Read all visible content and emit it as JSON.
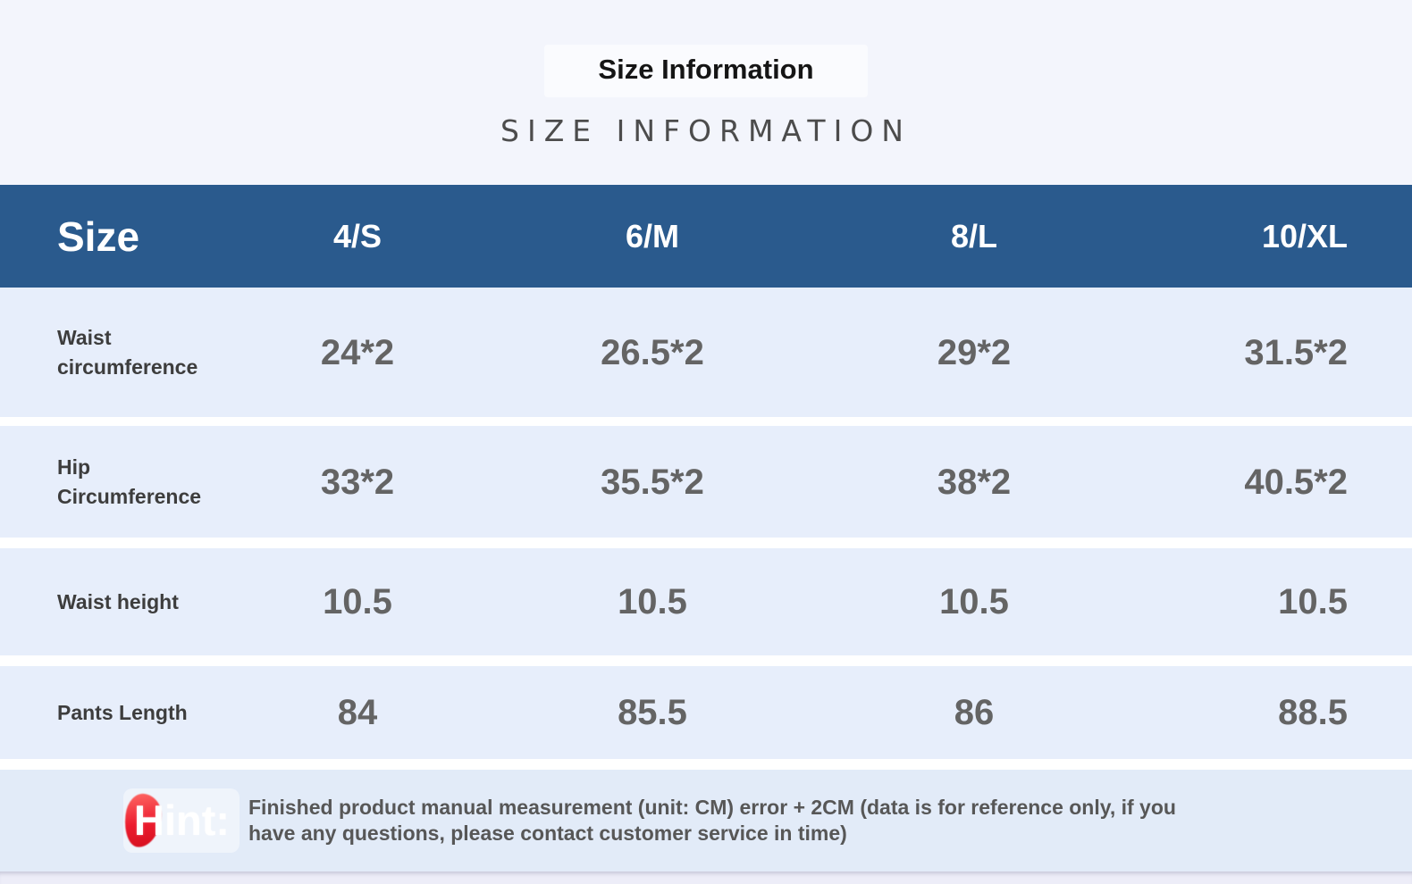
{
  "page": {
    "title": "Size Information",
    "subtitle": "SIZE INFORMATION"
  },
  "table": {
    "header": {
      "label": "Size",
      "columns": [
        "4/S",
        "6/M",
        "8/L",
        "10/XL"
      ]
    },
    "rows": [
      {
        "label": "Waist circumference",
        "values": [
          "24*2",
          "26.5*2",
          "29*2",
          "31.5*2"
        ]
      },
      {
        "label": "Hip Circumference",
        "values": [
          "33*2",
          "35.5*2",
          "38*2",
          "40.5*2"
        ]
      },
      {
        "label": "Waist height",
        "values": [
          "10.5",
          "10.5",
          "10.5",
          "10.5"
        ]
      },
      {
        "label": "Pants Length",
        "values": [
          "84",
          "85.5",
          "86",
          "88.5"
        ]
      }
    ],
    "unit_note": "CM"
  },
  "hint": {
    "label": "Hint:",
    "text": "Finished product manual measurement (unit: CM) error + 2CM (data is for reference only, if you have any questions, please contact customer service in time)"
  },
  "colors": {
    "page_bg": "#f3f5fc",
    "header_bg": "#2a5a8d",
    "row_bg": "#e7eefb",
    "hint_bg": "#e2ebf8",
    "strip_bg": "#ededf8",
    "label_color": "#3d3d3d",
    "value_color": "#646464",
    "accent_red": "#ec1c2e"
  }
}
